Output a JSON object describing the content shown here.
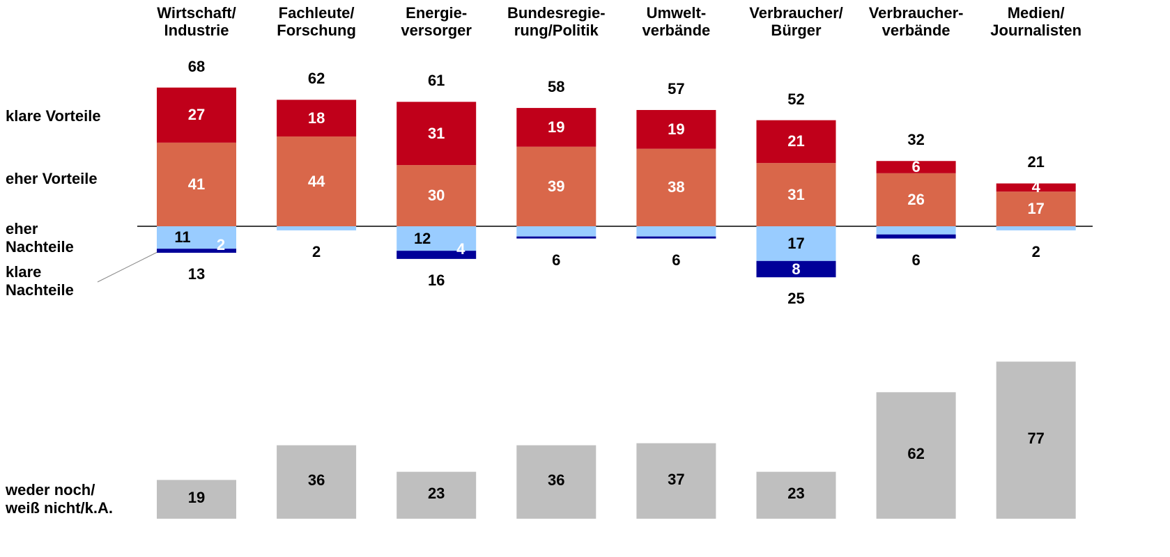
{
  "chart_data": [
    {
      "type": "bar",
      "stacked": true,
      "diverging": true,
      "categories": [
        "Wirtschaft/\nIndustrie",
        "Fachleute/\nForschung",
        "Energie-\nversorger",
        "Bundesregie-\nrung/Politik",
        "Umwelt-\nverbände",
        "Verbraucher/\nBürger",
        "Verbraucher-\nverbände",
        "Medien/\nJournalisten"
      ],
      "series": [
        {
          "name": "eher Vorteile",
          "color": "#d9674a",
          "side": "positive",
          "values": [
            41,
            44,
            30,
            39,
            38,
            31,
            26,
            17
          ],
          "value_labels": [
            "41",
            "44",
            "30",
            "39",
            "38",
            "31",
            "26",
            "17"
          ]
        },
        {
          "name": "klare Vorteile",
          "color": "#c0001a",
          "side": "positive",
          "values": [
            27,
            18,
            31,
            19,
            19,
            21,
            6,
            4
          ],
          "value_labels": [
            "27",
            "18",
            "31",
            "19",
            "19",
            "21",
            "6",
            "4"
          ]
        },
        {
          "name": "eher\nNachteile",
          "color": "#99ccff",
          "side": "negative",
          "values": [
            11,
            2,
            12,
            5,
            5,
            17,
            4,
            2
          ],
          "value_labels": [
            "11",
            null,
            "12",
            null,
            null,
            "17",
            null,
            null
          ]
        },
        {
          "name": "klare\nNachteile",
          "color": "#000099",
          "side": "negative",
          "values": [
            2,
            0,
            4,
            1,
            1,
            8,
            2,
            0
          ],
          "value_labels": [
            "2",
            null,
            "4",
            null,
            null,
            "8",
            null,
            null
          ]
        }
      ],
      "totals_positive": [
        68,
        62,
        61,
        58,
        57,
        52,
        32,
        21
      ],
      "totals_negative": [
        13,
        2,
        16,
        6,
        6,
        25,
        6,
        2
      ]
    },
    {
      "type": "bar",
      "series": [
        {
          "name": "weder noch/\nweiß nicht/k.A.",
          "color": "#bfbfbf",
          "values": [
            19,
            36,
            23,
            36,
            37,
            23,
            62,
            77
          ]
        }
      ]
    }
  ]
}
